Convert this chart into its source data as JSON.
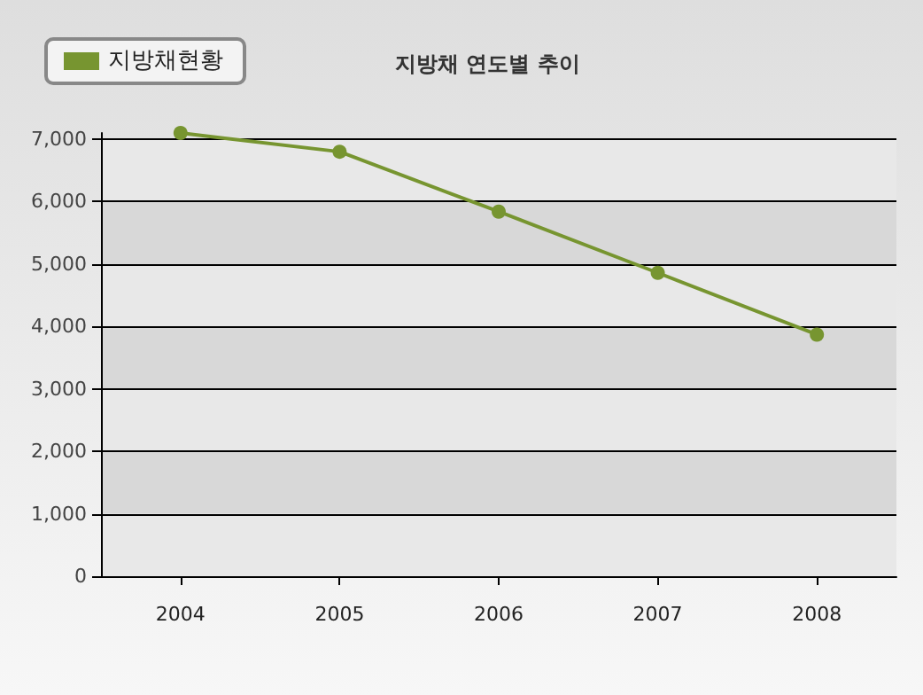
{
  "chart_data": {
    "type": "line",
    "title": "지방채 연도별 추이",
    "categories": [
      "2004",
      "2005",
      "2006",
      "2007",
      "2008"
    ],
    "series": [
      {
        "name": "지방채현황",
        "color": "#779530",
        "values": [
          7100,
          6800,
          5840,
          4860,
          3870
        ]
      }
    ],
    "ylim": [
      0,
      7100
    ],
    "yticks": [
      0,
      {
        "value": 1000,
        "label": "1,000"
      },
      {
        "value": 2000,
        "label": "2,000"
      },
      {
        "value": 3000,
        "label": "3,000"
      },
      {
        "value": 4000,
        "label": "4,000"
      },
      {
        "value": 5000,
        "label": "5,000"
      },
      {
        "value": 6000,
        "label": "6,000"
      },
      {
        "value": 7000,
        "label": "7,000"
      }
    ],
    "grid": "y",
    "legend": "top left",
    "marker": "circle",
    "line_style": "solid"
  }
}
